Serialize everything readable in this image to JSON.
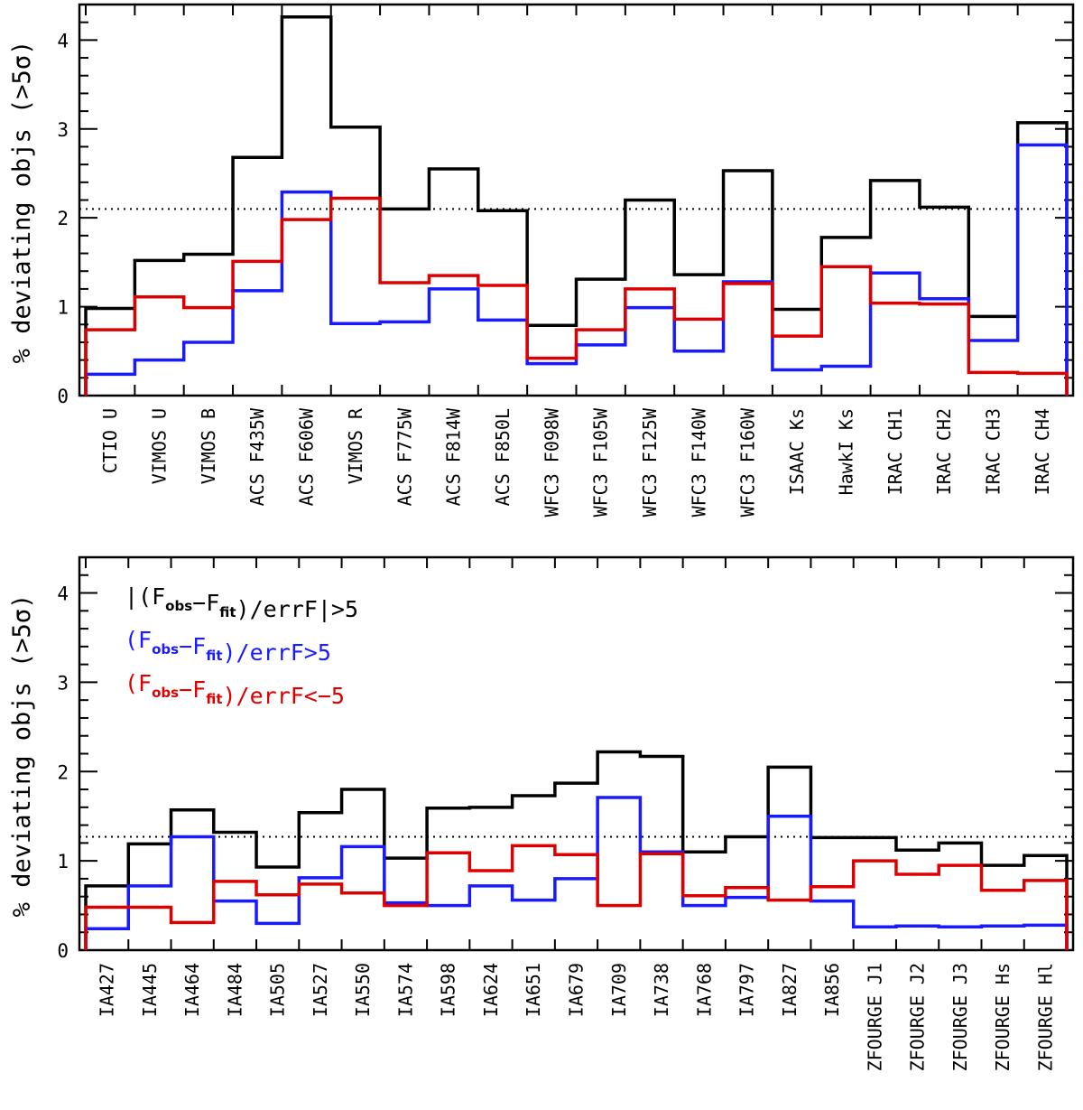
{
  "colors": {
    "all": "#000000",
    "positive": "#1a1aff",
    "negative": "#dd0000"
  },
  "chart_data": [
    {
      "type": "line",
      "step": true,
      "ylabel": "% deviating objs (>5σ)",
      "ylim": [
        0,
        4.4
      ],
      "yticks": [
        0,
        1,
        2,
        3,
        4
      ],
      "reference_line": 2.1,
      "categories": [
        "CTIO U",
        "VIMOS U",
        "VIMOS B",
        "ACS F435W",
        "ACS F606W",
        "VIMOS R",
        "ACS F775W",
        "ACS F814W",
        "ACS F850L",
        "WFC3 F098W",
        "WFC3 F105W",
        "WFC3 F125W",
        "WFC3 F140W",
        "WFC3 F160W",
        "ISAAC Ks",
        "HawkI Ks",
        "IRAC CH1",
        "IRAC CH2",
        "IRAC CH3",
        "IRAC CH4"
      ],
      "series": [
        {
          "key": "all",
          "values": [
            0.98,
            1.52,
            1.59,
            2.68,
            4.26,
            3.02,
            2.1,
            2.55,
            2.08,
            0.79,
            1.31,
            2.2,
            1.36,
            2.53,
            0.97,
            1.78,
            2.42,
            2.12,
            0.89,
            3.07
          ]
        },
        {
          "key": "positive",
          "values": [
            0.24,
            0.4,
            0.6,
            1.18,
            2.29,
            0.81,
            0.83,
            1.2,
            0.85,
            0.36,
            0.57,
            0.99,
            0.5,
            1.28,
            0.29,
            0.33,
            1.38,
            1.09,
            0.62,
            2.82
          ]
        },
        {
          "key": "negative",
          "values": [
            0.74,
            1.11,
            0.99,
            1.51,
            1.98,
            2.22,
            1.27,
            1.35,
            1.24,
            0.42,
            0.74,
            1.2,
            0.86,
            1.26,
            0.67,
            1.45,
            1.04,
            1.03,
            0.26,
            0.25
          ]
        }
      ]
    },
    {
      "type": "line",
      "step": true,
      "ylabel": "% deviating objs (>5σ)",
      "ylim": [
        0,
        4.4
      ],
      "yticks": [
        0,
        1,
        2,
        3,
        4
      ],
      "reference_line": 1.27,
      "categories": [
        "IA427",
        "IA445",
        "IA464",
        "IA484",
        "IA505",
        "IA527",
        "IA550",
        "IA574",
        "IA598",
        "IA624",
        "IA651",
        "IA679",
        "IA709",
        "IA738",
        "IA768",
        "IA797",
        "IA827",
        "IA856",
        "ZFOURGE J1",
        "ZFOURGE J2",
        "ZFOURGE J3",
        "ZFOURGE Hs",
        "ZFOURGE Hl"
      ],
      "series": [
        {
          "key": "all",
          "values": [
            0.72,
            1.19,
            1.57,
            1.32,
            0.93,
            1.54,
            1.8,
            1.03,
            1.59,
            1.6,
            1.73,
            1.87,
            2.22,
            2.17,
            1.1,
            1.27,
            2.05,
            1.26,
            1.26,
            1.12,
            1.2,
            0.95,
            1.06
          ]
        },
        {
          "key": "positive",
          "values": [
            0.24,
            0.72,
            1.27,
            0.55,
            0.3,
            0.81,
            1.16,
            0.53,
            0.5,
            0.72,
            0.56,
            0.8,
            1.71,
            1.1,
            0.5,
            0.59,
            1.5,
            0.55,
            0.26,
            0.27,
            0.26,
            0.27,
            0.28
          ]
        },
        {
          "key": "negative",
          "values": [
            0.48,
            0.48,
            0.31,
            0.77,
            0.62,
            0.74,
            0.64,
            0.5,
            1.09,
            0.89,
            1.17,
            1.07,
            0.5,
            1.08,
            0.61,
            0.7,
            0.56,
            0.71,
            1.0,
            0.85,
            0.95,
            0.67,
            0.78
          ]
        }
      ],
      "legend": {
        "placement": "top-left",
        "entries": [
          {
            "key": "all",
            "prefix": "|(F",
            "sub1": "obs",
            "mid": "−F",
            "sub2": "fit",
            "suffix": ")/errF|>5"
          },
          {
            "key": "positive",
            "prefix": "(F",
            "sub1": "obs",
            "mid": "−F",
            "sub2": "fit",
            "suffix": ")/errF>5"
          },
          {
            "key": "negative",
            "prefix": "(F",
            "sub1": "obs",
            "mid": "−F",
            "sub2": "fit",
            "suffix": ")/errF<−5"
          }
        ]
      }
    }
  ]
}
